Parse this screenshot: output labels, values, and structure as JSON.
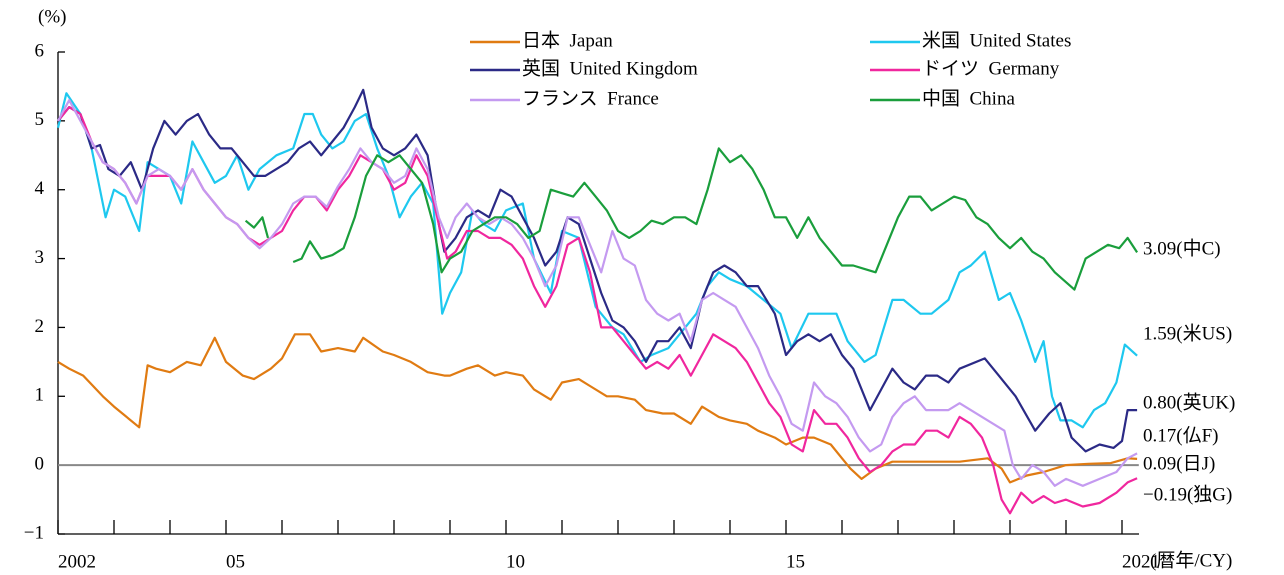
{
  "chart_data": {
    "type": "line",
    "y_label": "(%)",
    "x_label": "(暦年/CY)",
    "xlim": [
      2002,
      2021.3
    ],
    "ylim": [
      -1,
      6
    ],
    "yticks": [
      {
        "value": -1,
        "label": "−1"
      },
      0,
      1,
      2,
      3,
      4,
      5,
      6
    ],
    "xticks": [
      {
        "value": 2002,
        "label": "2002"
      },
      {
        "value": 2005,
        "label": "05"
      },
      {
        "value": 2010,
        "label": "10"
      },
      {
        "value": 2015,
        "label": "15"
      },
      {
        "value": 2021,
        "label": "2021"
      }
    ],
    "xminorticks": [
      2003,
      2004,
      2006,
      2007,
      2008,
      2009,
      2011,
      2012,
      2013,
      2014,
      2016,
      2017,
      2018,
      2019,
      2020
    ],
    "zero_line": true,
    "series": [
      {
        "name": "日本  Japan",
        "color": "#e07b12",
        "x": [
          2002.0,
          2002.2,
          2002.45,
          2002.8,
          2003.0,
          2003.45,
          2003.6,
          2003.75,
          2004.0,
          2004.3,
          2004.55,
          2004.8,
          2005.0,
          2005.3,
          2005.5,
          2005.8,
          2006.0,
          2006.23,
          2006.5,
          2006.7,
          2007.0,
          2007.3,
          2007.45,
          2007.8,
          2008.0,
          2008.3,
          2008.6,
          2008.9,
          2009.0,
          2009.3,
          2009.5,
          2009.8,
          2010.0,
          2010.3,
          2010.5,
          2010.8,
          2011.0,
          2011.3,
          2011.5,
          2011.8,
          2012.0,
          2012.3,
          2012.5,
          2012.8,
          2013.0,
          2013.3,
          2013.5,
          2013.8,
          2014.0,
          2014.3,
          2014.5,
          2014.8,
          2015.0,
          2015.3,
          2015.5,
          2015.8,
          2016.0,
          2016.15,
          2016.35,
          2016.6,
          2016.9,
          2017.3,
          2017.7,
          2018.1,
          2018.6,
          2018.85,
          2019.0,
          2019.3,
          2019.6,
          2020.0,
          2020.4,
          2020.8,
          2021.1,
          2021.27
        ],
        "values": [
          1.5,
          1.4,
          1.3,
          1.0,
          0.85,
          0.55,
          1.45,
          1.4,
          1.35,
          1.5,
          1.45,
          1.85,
          1.5,
          1.3,
          1.25,
          1.4,
          1.55,
          1.9,
          1.9,
          1.65,
          1.7,
          1.65,
          1.85,
          1.65,
          1.6,
          1.5,
          1.35,
          1.3,
          1.3,
          1.4,
          1.45,
          1.3,
          1.35,
          1.3,
          1.1,
          0.95,
          1.2,
          1.25,
          1.15,
          1.0,
          1.0,
          0.95,
          0.8,
          0.75,
          0.75,
          0.6,
          0.85,
          0.7,
          0.65,
          0.6,
          0.5,
          0.4,
          0.3,
          0.4,
          0.4,
          0.3,
          0.1,
          -0.05,
          -0.2,
          -0.05,
          0.05,
          0.05,
          0.05,
          0.05,
          0.1,
          -0.05,
          -0.25,
          -0.15,
          -0.1,
          0.0,
          0.02,
          0.03,
          0.1,
          0.09
        ]
      },
      {
        "name": "米国  United States",
        "color": "#1ec8ef",
        "x": [
          2002.0,
          2002.15,
          2002.4,
          2002.6,
          2002.75,
          2002.85,
          2003.0,
          2003.2,
          2003.45,
          2003.6,
          2003.8,
          2004.0,
          2004.2,
          2004.4,
          2004.6,
          2004.8,
          2005.0,
          2005.2,
          2005.4,
          2005.6,
          2005.9,
          2006.2,
          2006.4,
          2006.55,
          2006.7,
          2006.9,
          2007.1,
          2007.3,
          2007.5,
          2007.7,
          2007.9,
          2008.1,
          2008.3,
          2008.5,
          2008.7,
          2008.86,
          2009.0,
          2009.2,
          2009.4,
          2009.6,
          2009.8,
          2010.0,
          2010.3,
          2010.5,
          2010.8,
          2011.0,
          2011.3,
          2011.6,
          2011.9,
          2012.1,
          2012.4,
          2012.6,
          2012.9,
          2013.1,
          2013.4,
          2013.6,
          2013.8,
          2014.0,
          2014.3,
          2014.6,
          2014.9,
          2015.1,
          2015.4,
          2015.6,
          2015.9,
          2016.1,
          2016.4,
          2016.6,
          2016.9,
          2017.1,
          2017.4,
          2017.6,
          2017.9,
          2018.1,
          2018.3,
          2018.55,
          2018.8,
          2019.0,
          2019.2,
          2019.45,
          2019.6,
          2019.75,
          2019.9,
          2020.1,
          2020.3,
          2020.5,
          2020.7,
          2020.9,
          2021.05,
          2021.27
        ],
        "values": [
          4.9,
          5.4,
          5.1,
          4.6,
          4.0,
          3.6,
          4.0,
          3.9,
          3.4,
          4.4,
          4.3,
          4.2,
          3.8,
          4.7,
          4.4,
          4.1,
          4.2,
          4.5,
          4.0,
          4.3,
          4.5,
          4.6,
          5.1,
          5.1,
          4.8,
          4.6,
          4.7,
          5.0,
          5.1,
          4.6,
          4.2,
          3.6,
          3.9,
          4.1,
          3.8,
          2.2,
          2.5,
          2.8,
          3.7,
          3.5,
          3.4,
          3.7,
          3.8,
          3.0,
          2.5,
          3.4,
          3.3,
          2.3,
          2.0,
          1.9,
          1.5,
          1.6,
          1.7,
          1.9,
          2.2,
          2.6,
          2.8,
          2.7,
          2.6,
          2.4,
          2.2,
          1.7,
          2.2,
          2.2,
          2.2,
          1.8,
          1.5,
          1.6,
          2.4,
          2.4,
          2.2,
          2.2,
          2.4,
          2.8,
          2.9,
          3.1,
          2.4,
          2.5,
          2.1,
          1.5,
          1.8,
          1.0,
          0.65,
          0.65,
          0.55,
          0.8,
          0.9,
          1.2,
          1.75,
          1.59
        ]
      },
      {
        "name": "英国  United Kingdom",
        "color": "#2b2a86",
        "x": [
          2002.0,
          2002.2,
          2002.4,
          2002.6,
          2002.75,
          2002.9,
          2003.1,
          2003.3,
          2003.5,
          2003.7,
          2003.9,
          2004.1,
          2004.3,
          2004.5,
          2004.7,
          2004.9,
          2005.1,
          2005.3,
          2005.5,
          2005.7,
          2005.9,
          2006.1,
          2006.3,
          2006.5,
          2006.7,
          2006.9,
          2007.1,
          2007.3,
          2007.45,
          2007.6,
          2007.8,
          2008.0,
          2008.2,
          2008.4,
          2008.6,
          2008.8,
          2008.9,
          2009.1,
          2009.3,
          2009.5,
          2009.7,
          2009.9,
          2010.1,
          2010.3,
          2010.5,
          2010.7,
          2010.9,
          2011.1,
          2011.3,
          2011.5,
          2011.7,
          2011.9,
          2012.1,
          2012.3,
          2012.5,
          2012.7,
          2012.9,
          2013.1,
          2013.3,
          2013.5,
          2013.7,
          2013.9,
          2014.1,
          2014.3,
          2014.5,
          2014.8,
          2015.0,
          2015.2,
          2015.4,
          2015.6,
          2015.8,
          2016.0,
          2016.2,
          2016.5,
          2016.7,
          2016.9,
          2017.1,
          2017.3,
          2017.5,
          2017.7,
          2017.9,
          2018.1,
          2018.55,
          2018.8,
          2019.1,
          2019.45,
          2019.7,
          2019.9,
          2020.1,
          2020.35,
          2020.6,
          2020.85,
          2021.0,
          2021.1,
          2021.27
        ],
        "values": [
          5.0,
          5.2,
          5.1,
          4.6,
          4.65,
          4.3,
          4.2,
          4.4,
          4.0,
          4.6,
          5.0,
          4.8,
          5.0,
          5.1,
          4.8,
          4.6,
          4.6,
          4.4,
          4.2,
          4.2,
          4.3,
          4.4,
          4.6,
          4.7,
          4.5,
          4.7,
          4.9,
          5.2,
          5.45,
          4.9,
          4.6,
          4.5,
          4.6,
          4.8,
          4.5,
          3.5,
          3.1,
          3.3,
          3.6,
          3.7,
          3.6,
          4.0,
          3.9,
          3.6,
          3.3,
          2.9,
          3.1,
          3.6,
          3.5,
          3.0,
          2.5,
          2.1,
          2.0,
          1.8,
          1.5,
          1.8,
          1.8,
          2.0,
          1.7,
          2.4,
          2.8,
          2.9,
          2.8,
          2.6,
          2.6,
          2.2,
          1.6,
          1.8,
          1.9,
          1.8,
          1.9,
          1.6,
          1.4,
          0.8,
          1.1,
          1.4,
          1.2,
          1.1,
          1.3,
          1.3,
          1.2,
          1.4,
          1.55,
          1.3,
          1.0,
          0.5,
          0.75,
          0.9,
          0.4,
          0.2,
          0.3,
          0.25,
          0.35,
          0.8,
          0.8
        ]
      },
      {
        "name": "ドイツ  Germany",
        "color": "#f0279e",
        "x": [
          2002.0,
          2002.2,
          2002.4,
          2002.6,
          2002.8,
          2003.0,
          2003.2,
          2003.4,
          2003.6,
          2003.8,
          2004.0,
          2004.2,
          2004.4,
          2004.6,
          2004.8,
          2005.0,
          2005.2,
          2005.4,
          2005.6,
          2005.8,
          2006.0,
          2006.2,
          2006.4,
          2006.6,
          2006.8,
          2007.0,
          2007.2,
          2007.4,
          2007.6,
          2007.8,
          2008.0,
          2008.2,
          2008.4,
          2008.6,
          2008.8,
          2008.95,
          2009.1,
          2009.3,
          2009.5,
          2009.7,
          2009.9,
          2010.1,
          2010.3,
          2010.5,
          2010.7,
          2010.9,
          2011.1,
          2011.3,
          2011.5,
          2011.7,
          2011.9,
          2012.1,
          2012.3,
          2012.5,
          2012.7,
          2012.9,
          2013.1,
          2013.3,
          2013.5,
          2013.7,
          2013.9,
          2014.1,
          2014.3,
          2014.5,
          2014.7,
          2014.9,
          2015.1,
          2015.3,
          2015.5,
          2015.7,
          2015.9,
          2016.1,
          2016.3,
          2016.5,
          2016.7,
          2016.9,
          2017.1,
          2017.3,
          2017.5,
          2017.7,
          2017.9,
          2018.1,
          2018.3,
          2018.5,
          2018.7,
          2018.85,
          2019.0,
          2019.2,
          2019.4,
          2019.6,
          2019.8,
          2020.0,
          2020.3,
          2020.6,
          2020.9,
          2021.1,
          2021.27
        ],
        "values": [
          5.0,
          5.2,
          5.1,
          4.7,
          4.4,
          4.3,
          4.1,
          3.8,
          4.2,
          4.2,
          4.2,
          4.0,
          4.3,
          4.0,
          3.8,
          3.6,
          3.5,
          3.3,
          3.2,
          3.3,
          3.4,
          3.7,
          3.9,
          3.9,
          3.7,
          4.0,
          4.2,
          4.5,
          4.4,
          4.3,
          4.0,
          4.1,
          4.5,
          4.2,
          3.5,
          3.0,
          3.1,
          3.4,
          3.4,
          3.3,
          3.3,
          3.2,
          3.0,
          2.6,
          2.3,
          2.6,
          3.2,
          3.3,
          2.8,
          2.0,
          2.0,
          1.8,
          1.6,
          1.4,
          1.5,
          1.4,
          1.6,
          1.3,
          1.6,
          1.9,
          1.8,
          1.7,
          1.5,
          1.2,
          0.9,
          0.7,
          0.3,
          0.2,
          0.8,
          0.6,
          0.6,
          0.4,
          0.1,
          -0.1,
          0.0,
          0.2,
          0.3,
          0.3,
          0.5,
          0.5,
          0.4,
          0.7,
          0.6,
          0.4,
          0.0,
          -0.5,
          -0.7,
          -0.4,
          -0.55,
          -0.45,
          -0.55,
          -0.5,
          -0.6,
          -0.55,
          -0.4,
          -0.25,
          -0.19
        ]
      },
      {
        "name": "フランス  France",
        "color": "#c49af0",
        "x": [
          2002.0,
          2002.2,
          2002.4,
          2002.6,
          2002.8,
          2003.0,
          2003.2,
          2003.4,
          2003.6,
          2003.8,
          2004.0,
          2004.2,
          2004.4,
          2004.6,
          2004.8,
          2005.0,
          2005.2,
          2005.4,
          2005.6,
          2005.8,
          2006.0,
          2006.2,
          2006.4,
          2006.6,
          2006.8,
          2007.0,
          2007.2,
          2007.4,
          2007.6,
          2007.8,
          2008.0,
          2008.2,
          2008.4,
          2008.6,
          2008.8,
          2008.95,
          2009.1,
          2009.3,
          2009.5,
          2009.7,
          2009.9,
          2010.1,
          2010.3,
          2010.5,
          2010.7,
          2010.9,
          2011.1,
          2011.3,
          2011.5,
          2011.7,
          2011.9,
          2012.1,
          2012.3,
          2012.5,
          2012.7,
          2012.9,
          2013.1,
          2013.3,
          2013.5,
          2013.7,
          2013.9,
          2014.1,
          2014.3,
          2014.5,
          2014.7,
          2014.9,
          2015.1,
          2015.3,
          2015.5,
          2015.7,
          2015.9,
          2016.1,
          2016.3,
          2016.5,
          2016.7,
          2016.9,
          2017.1,
          2017.3,
          2017.5,
          2017.7,
          2017.9,
          2018.1,
          2018.3,
          2018.5,
          2018.7,
          2018.9,
          2019.05,
          2019.2,
          2019.4,
          2019.6,
          2019.8,
          2020.0,
          2020.3,
          2020.6,
          2020.9,
          2021.1,
          2021.27
        ],
        "values": [
          5.0,
          5.3,
          5.0,
          4.7,
          4.4,
          4.3,
          4.1,
          3.8,
          4.2,
          4.3,
          4.2,
          4.0,
          4.3,
          4.0,
          3.8,
          3.6,
          3.5,
          3.3,
          3.15,
          3.3,
          3.5,
          3.8,
          3.9,
          3.9,
          3.75,
          4.05,
          4.3,
          4.6,
          4.4,
          4.3,
          4.1,
          4.2,
          4.6,
          4.3,
          3.6,
          3.3,
          3.6,
          3.8,
          3.6,
          3.5,
          3.6,
          3.5,
          3.3,
          3.0,
          2.6,
          2.9,
          3.6,
          3.6,
          3.2,
          2.8,
          3.4,
          3.0,
          2.9,
          2.4,
          2.2,
          2.1,
          2.2,
          1.8,
          2.4,
          2.5,
          2.4,
          2.3,
          2.0,
          1.7,
          1.3,
          1.0,
          0.6,
          0.5,
          1.2,
          1.0,
          0.9,
          0.7,
          0.4,
          0.2,
          0.3,
          0.7,
          0.9,
          1.0,
          0.8,
          0.8,
          0.8,
          0.9,
          0.8,
          0.7,
          0.6,
          0.5,
          0.0,
          -0.2,
          0.0,
          -0.1,
          -0.3,
          -0.2,
          -0.3,
          -0.2,
          -0.1,
          0.1,
          0.17
        ]
      },
      {
        "name": "中国  China",
        "color": "#1a9e3c",
        "x": [
          2005.35,
          2005.5,
          2005.65,
          2005.75,
          2005.9,
          2006.2,
          2006.35,
          2006.5,
          2006.7,
          2006.9,
          2007.1,
          2007.3,
          2007.5,
          2007.7,
          2007.9,
          2008.1,
          2008.3,
          2008.5,
          2008.7,
          2008.85,
          2009.0,
          2009.2,
          2009.4,
          2009.6,
          2009.8,
          2010.0,
          2010.2,
          2010.4,
          2010.6,
          2010.8,
          2011.0,
          2011.2,
          2011.4,
          2011.6,
          2011.8,
          2012.0,
          2012.2,
          2012.4,
          2012.6,
          2012.8,
          2013.0,
          2013.2,
          2013.4,
          2013.6,
          2013.8,
          2014.0,
          2014.2,
          2014.4,
          2014.6,
          2014.8,
          2015.0,
          2015.2,
          2015.4,
          2015.6,
          2015.8,
          2016.0,
          2016.2,
          2016.4,
          2016.6,
          2016.8,
          2017.0,
          2017.2,
          2017.4,
          2017.6,
          2017.8,
          2018.0,
          2018.2,
          2018.4,
          2018.6,
          2018.8,
          2019.0,
          2019.2,
          2019.4,
          2019.6,
          2019.8,
          2020.15,
          2020.35,
          2020.55,
          2020.75,
          2020.95,
          2021.1,
          2021.27
        ],
        "values": [
          3.55,
          3.45,
          3.6,
          3.3,
          null,
          2.95,
          3.0,
          3.25,
          3.0,
          3.05,
          3.15,
          3.6,
          4.2,
          4.5,
          4.4,
          4.5,
          4.3,
          4.1,
          3.5,
          2.8,
          3.0,
          3.1,
          3.4,
          3.5,
          3.6,
          3.6,
          3.5,
          3.3,
          3.4,
          4.0,
          3.95,
          3.9,
          4.1,
          3.9,
          3.7,
          3.4,
          3.3,
          3.4,
          3.55,
          3.5,
          3.6,
          3.6,
          3.5,
          4.0,
          4.6,
          4.4,
          4.5,
          4.3,
          4.0,
          3.6,
          3.6,
          3.3,
          3.6,
          3.3,
          3.1,
          2.9,
          2.9,
          2.85,
          2.8,
          3.2,
          3.6,
          3.9,
          3.9,
          3.7,
          3.8,
          3.9,
          3.85,
          3.6,
          3.5,
          3.3,
          3.15,
          3.3,
          3.1,
          3.0,
          2.8,
          2.55,
          3.0,
          3.1,
          3.2,
          3.15,
          3.3,
          3.09
        ]
      }
    ],
    "annotations": [
      "3.09(中C)",
      "1.59(米US)",
      "0.80(英UK)",
      "0.17(仏F)",
      "0.09(日J)",
      "−0.19(独G)"
    ]
  }
}
